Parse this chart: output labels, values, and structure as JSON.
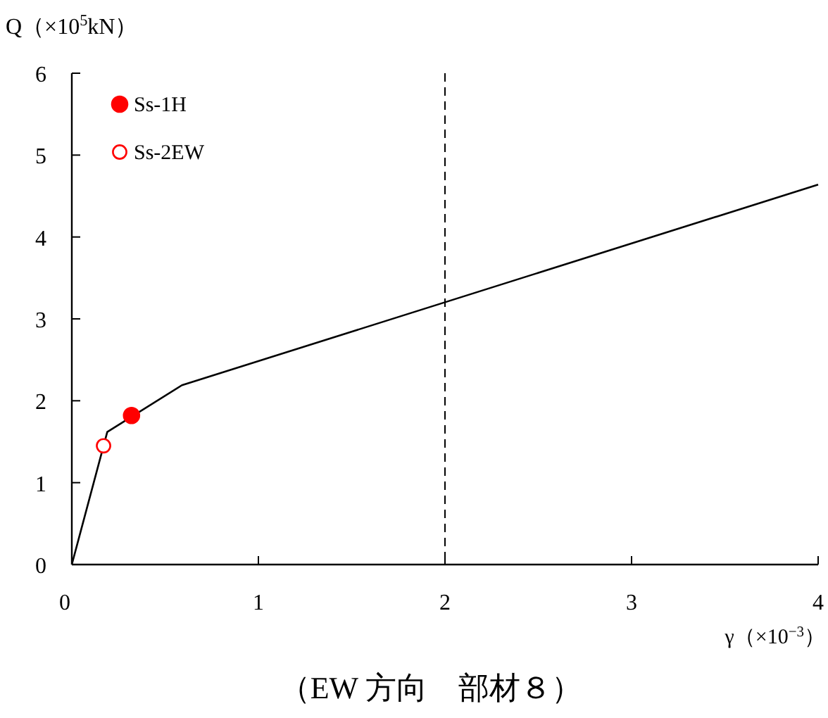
{
  "chart_data": {
    "type": "line",
    "title": "（EW 方向　部材８）",
    "xlabel": "γ（×10$^{−3}$）",
    "ylabel": "Q（×10$^{5}$kN）",
    "xlim": [
      0,
      4
    ],
    "xticks": [
      0,
      1,
      2,
      3,
      4
    ],
    "ylim": [
      0,
      6
    ],
    "yticks": [
      0,
      1,
      2,
      3,
      4,
      5,
      6
    ],
    "grid": false,
    "legend": "top left",
    "series": [
      {
        "color": "#000000",
        "marker": "none",
        "x": [
          0,
          0.19,
          0.59,
          4
        ],
        "values": [
          0,
          1.62,
          2.19,
          4.64
        ]
      },
      {
        "type": "scatter",
        "name": "Ss-1H",
        "color": "#ff0000",
        "marker": "circle",
        "x": [
          0.32
        ],
        "values": [
          1.82
        ]
      },
      {
        "type": "scatter",
        "name": "Ss-2EW",
        "color": "#ff0000",
        "marker": "circle",
        "x": [
          0.17
        ],
        "values": [
          1.45
        ]
      }
    ],
    "ref_lines": [
      {
        "axis": "x",
        "value": 2,
        "color": "#000000",
        "line_style": "dashed"
      }
    ]
  }
}
